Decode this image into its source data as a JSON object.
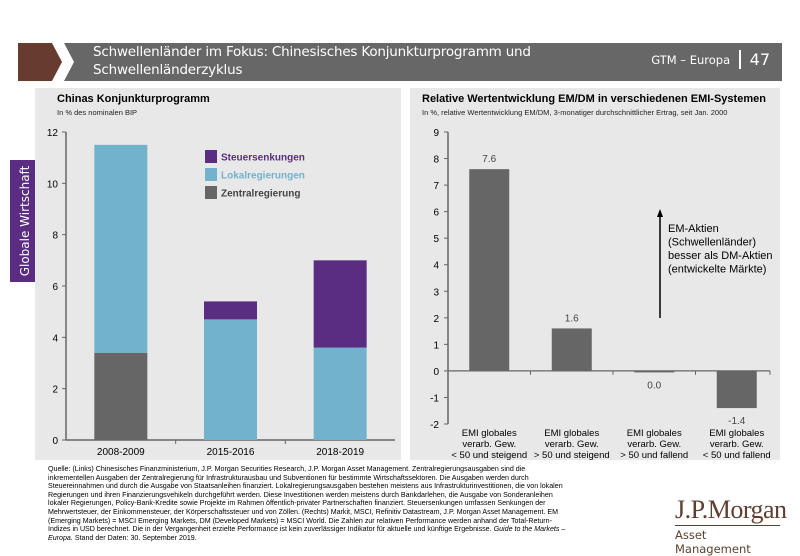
{
  "header": {
    "title_line1": "Schwellenländer im Fokus: Chinesisches Konjunkturprogramm und",
    "title_line2": "Schwellenländerzyklus",
    "series_label": "GTM – Europa",
    "page_number": "47",
    "colors": {
      "chevron": "#673c2e",
      "bar": "#676767"
    }
  },
  "side_tab": {
    "label": "Globale Wirtschaft",
    "color": "#5a2d83"
  },
  "footnote": {
    "text": "Quelle: (Links) Chinesisches Finanzministerium, J.P. Morgan Securities Research, J.P. Morgan Asset Management. Zentralregierungsausgaben sind die inkrementellen Ausgaben der Zentralregierung für Infrastrukturausbau und Subventionen für bestimmte Wirtschaftssektoren. Die Ausgaben werden durch Steuereinnahmen und durch die Ausgabe von Staatsanleihen finanziert. Lokalregierungsausgaben bestehen meistens aus Infrastrukturinvestitionen, die von lokalen Regierungen und ihren Finanzierungsvehikeln durchgeführt werden. Diese Investitionen werden meistens durch Bankdarlehen, die Ausgabe von Sonderanleihen lokaler Regierungen, Policy-Bank-Kredite sowie Projekte im Rahmen öffentlich-privater Partnerschaften finanziert. Steuersenkungen umfassen Senkungen der Mehrwertsteuer, der Einkommensteuer, der Körperschaftssteuer und von Zöllen. (Rechts) Markit, MSCI, Refinitiv Datastream, J.P. Morgan Asset Management. EM (Emerging Markets) = MSCI Emerging Markets, DM (Developed Markets) = MSCI World. Die Zahlen zur relativen Performance werden anhand der Total-Return-Indizes in USD berechnet. Die in der Vergangenheit erzielte Performance ist kein zuverlässiger Indikator für aktuelle und künftige Ergebnisse.",
    "italic": "Guide to the Markets – Europa.",
    "date": "Stand der Daten: 30. September 2019."
  },
  "logo": {
    "name": "J.P.Morgan",
    "sub": "Asset Management"
  },
  "chart_data": [
    {
      "type": "bar",
      "stacked": true,
      "title": "Chinas Konjunkturprogramm",
      "subtitle": "In % des nominalen BIP",
      "xlabel": "",
      "ylabel": "",
      "categories": [
        "2008-2009",
        "2015-2016",
        "2018-2019"
      ],
      "series": [
        {
          "name": "Zentralregierung",
          "color": "#666666",
          "values": [
            3.4,
            0,
            0
          ]
        },
        {
          "name": "Lokalregierungen",
          "color": "#72b2cc",
          "values": [
            8.1,
            4.7,
            3.6
          ]
        },
        {
          "name": "Steuersenkungen",
          "color": "#5a2d83",
          "values": [
            0,
            0.7,
            3.4
          ]
        }
      ],
      "legend_order": [
        "Steuersenkungen",
        "Lokalregierungen",
        "Zentralregierung"
      ],
      "legend_position": "top-right",
      "ylim": [
        0,
        12
      ],
      "yticks": [
        0,
        2,
        4,
        6,
        8,
        10,
        12
      ],
      "grid": false
    },
    {
      "type": "bar",
      "title": "Relative Wertentwicklung EM/DM in verschiedenen EMI-Systemen",
      "subtitle": "In %, relative Wertentwicklung EM/DM, 3-monatiger durchschnittlicher Ertrag, seit Jan. 2000",
      "xlabel": "",
      "ylabel": "",
      "categories": [
        [
          "EMI globales",
          "verarb. Gew.",
          "< 50 und steigend"
        ],
        [
          "EMI globales",
          "verarb. Gew.",
          "> 50 und steigend"
        ],
        [
          "EMI globales",
          "verarb. Gew.",
          "> 50 und fallend"
        ],
        [
          "EMI globales",
          "verarb. Gew.",
          "< 50 und fallend"
        ]
      ],
      "values": [
        7.6,
        1.6,
        0.0,
        -1.4
      ],
      "data_labels": [
        "7.6",
        "1.6",
        "0.0",
        "-1.4"
      ],
      "bar_color": "#666666",
      "ylim": [
        -2,
        9
      ],
      "yticks": [
        -2,
        -1,
        0,
        1,
        2,
        3,
        4,
        5,
        6,
        7,
        8,
        9
      ],
      "annotation": [
        "EM-Aktien",
        "(Schwellenländer)",
        "besser als DM-Aktien",
        "(entwickelte Märkte)"
      ],
      "grid": false
    }
  ]
}
